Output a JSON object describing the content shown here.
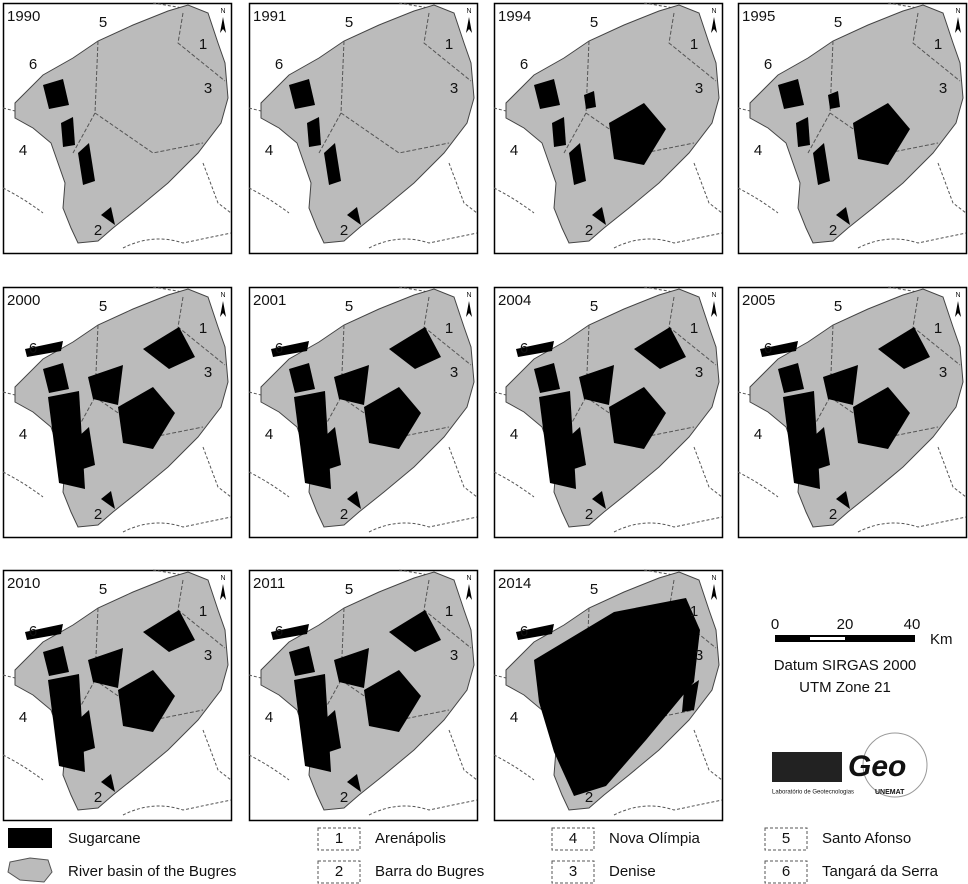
{
  "panels": [
    {
      "year": "1990"
    },
    {
      "year": "1991"
    },
    {
      "year": "1994"
    },
    {
      "year": "1995"
    },
    {
      "year": "2000"
    },
    {
      "year": "2001"
    },
    {
      "year": "2004"
    },
    {
      "year": "2005"
    },
    {
      "year": "2010"
    },
    {
      "year": "2011"
    },
    {
      "year": "2014"
    }
  ],
  "north_label": "N",
  "legend": {
    "sugarcane": "Sugarcane",
    "basin": "River basin of the Bugres",
    "municipalities": [
      {
        "number": "1",
        "name": "Arenápolis"
      },
      {
        "number": "2",
        "name": "Barra do Bugres"
      },
      {
        "number": "3",
        "name": "Denise"
      },
      {
        "number": "4",
        "name": "Nova Olímpia"
      },
      {
        "number": "5",
        "name": "Santo Afonso"
      },
      {
        "number": "6",
        "name": "Tangará da Serra"
      }
    ]
  },
  "scale": {
    "ticks": [
      "0",
      "20",
      "40"
    ],
    "unit": "Km"
  },
  "datum": {
    "line1": "Datum SIRGAS 2000",
    "line2": "UTM Zone 21"
  },
  "logo": {
    "text": "Geo",
    "caption": "Laboratório de Geotecnologias",
    "org": "UNEMAT"
  }
}
